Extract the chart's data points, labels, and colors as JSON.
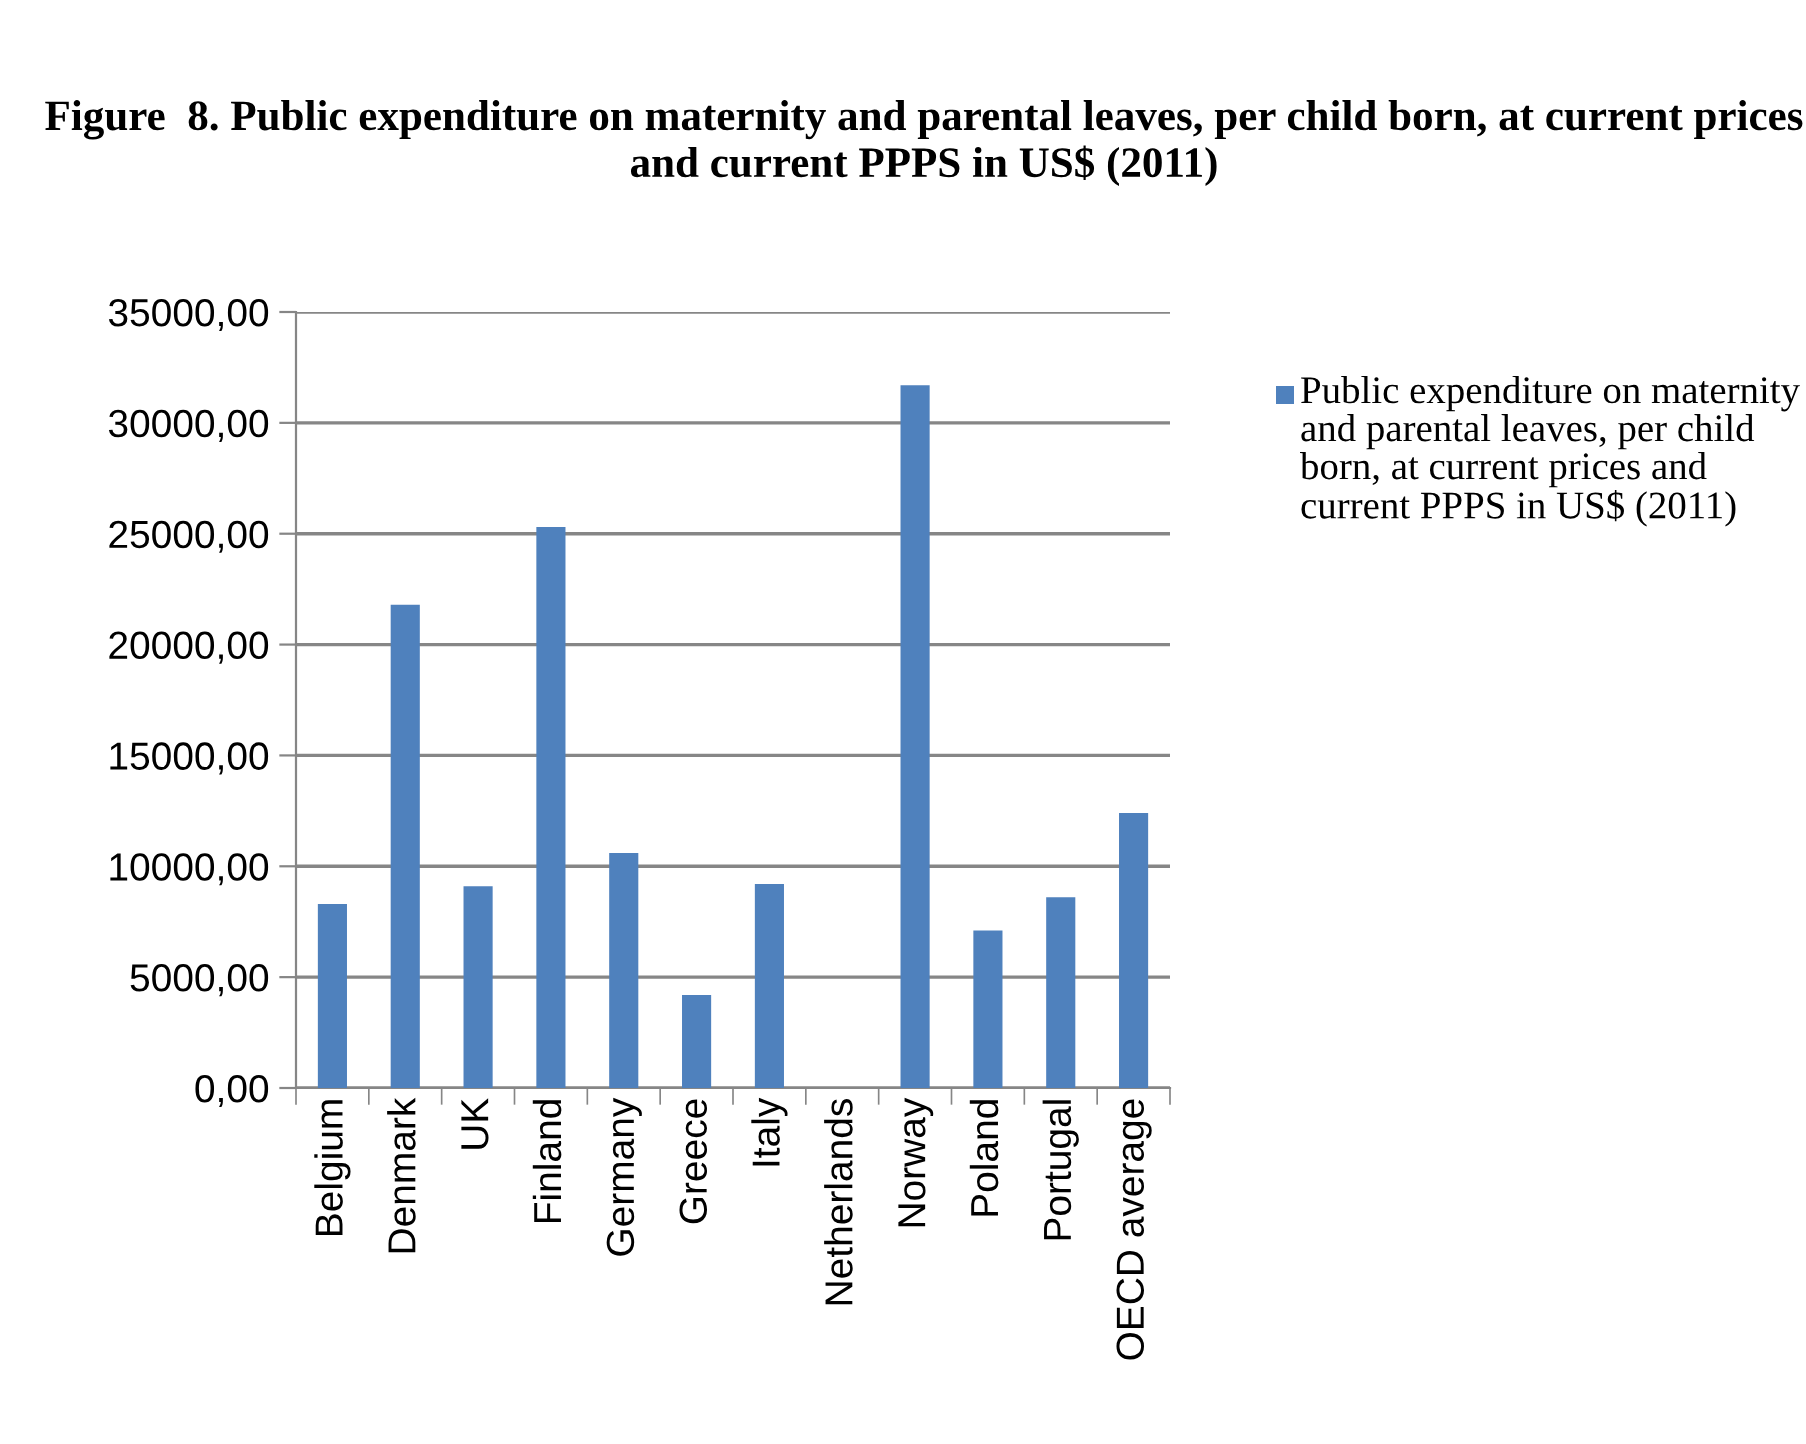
{
  "chart_data": {
    "type": "bar",
    "title": "Figure  8. Public expenditure on maternity and parental leaves, per child born, at current prices and current PPPS in US$ (2011)",
    "categories": [
      "Belgium",
      "Denmark",
      "UK",
      "Finland",
      "Germany",
      "Greece",
      "Italy",
      "Netherlands",
      "Norway",
      "Poland",
      "Portugal",
      "OECD average"
    ],
    "series": [
      {
        "name": "Public expenditure on maternity and parental leaves, per child born, at current prices and current PPPS in US$ (2011)",
        "color": "#4f81bd",
        "values": [
          8300,
          21800,
          9100,
          25300,
          10600,
          4200,
          9200,
          null,
          31700,
          7100,
          8600,
          12400
        ]
      }
    ],
    "ylim": [
      0,
      35000
    ],
    "yticks": [
      {
        "value": 0,
        "label": "0,00"
      },
      {
        "value": 5000,
        "label": "5000,00"
      },
      {
        "value": 10000,
        "label": "10000,00"
      },
      {
        "value": 15000,
        "label": "15000,00"
      },
      {
        "value": 20000,
        "label": "20000,00"
      },
      {
        "value": 25000,
        "label": "25000,00"
      },
      {
        "value": 30000,
        "label": "30000,00"
      },
      {
        "value": 35000,
        "label": "35000,00"
      }
    ],
    "grid": "y",
    "legend": "right"
  }
}
